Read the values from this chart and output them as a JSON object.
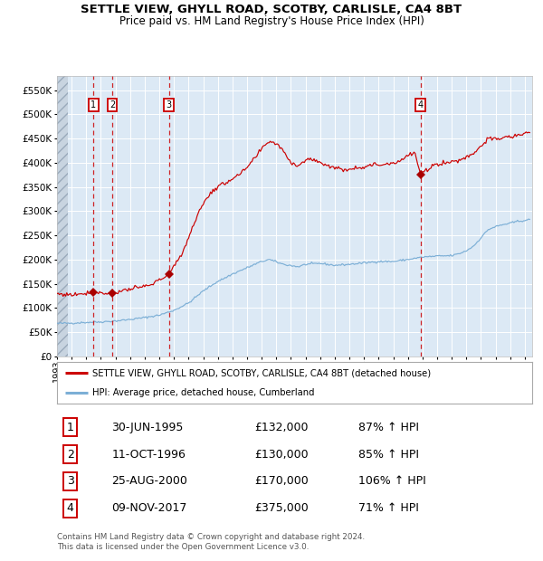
{
  "title": "SETTLE VIEW, GHYLL ROAD, SCOTBY, CARLISLE, CA4 8BT",
  "subtitle": "Price paid vs. HM Land Registry's House Price Index (HPI)",
  "legend_property": "SETTLE VIEW, GHYLL ROAD, SCOTBY, CARLISLE, CA4 8BT (detached house)",
  "legend_hpi": "HPI: Average price, detached house, Cumberland",
  "footer_line1": "Contains HM Land Registry data © Crown copyright and database right 2024.",
  "footer_line2": "This data is licensed under the Open Government Licence v3.0.",
  "sales": [
    {
      "num": 1,
      "date": "30-JUN-1995",
      "price": 132000,
      "hpi_pct": "87% ↑ HPI",
      "x_year": 1995.5
    },
    {
      "num": 2,
      "date": "11-OCT-1996",
      "price": 130000,
      "hpi_pct": "85% ↑ HPI",
      "x_year": 1996.79
    },
    {
      "num": 3,
      "date": "25-AUG-2000",
      "price": 170000,
      "hpi_pct": "106% ↑ HPI",
      "x_year": 2000.65
    },
    {
      "num": 4,
      "date": "09-NOV-2017",
      "price": 375000,
      "hpi_pct": "71% ↑ HPI",
      "x_year": 2017.86
    }
  ],
  "property_color": "#cc0000",
  "hpi_color": "#7cafd6",
  "sale_marker_color": "#aa0000",
  "dashed_line_color": "#cc0000",
  "box_color": "#cc0000",
  "background_color": "#dce9f5",
  "ylim": [
    0,
    580000
  ],
  "yticks": [
    0,
    50000,
    100000,
    150000,
    200000,
    250000,
    300000,
    350000,
    400000,
    450000,
    500000,
    550000
  ],
  "xlim_start": 1993.0,
  "xlim_end": 2025.5,
  "grid_color": "#ffffff",
  "title_fontsize": 9.5,
  "subtitle_fontsize": 8.5,
  "tick_fontsize": 7.5,
  "hpi_anchors": [
    [
      1993.0,
      68000
    ],
    [
      1994.0,
      68500
    ],
    [
      1995.0,
      70000
    ],
    [
      1996.0,
      71000
    ],
    [
      1997.0,
      73000
    ],
    [
      1998.0,
      76000
    ],
    [
      1999.0,
      80000
    ],
    [
      2000.0,
      85000
    ],
    [
      2001.0,
      95000
    ],
    [
      2002.0,
      110000
    ],
    [
      2003.0,
      135000
    ],
    [
      2004.0,
      155000
    ],
    [
      2004.5,
      162000
    ],
    [
      2005.0,
      170000
    ],
    [
      2006.0,
      183000
    ],
    [
      2007.0,
      196000
    ],
    [
      2007.5,
      200000
    ],
    [
      2008.5,
      190000
    ],
    [
      2009.5,
      185000
    ],
    [
      2010.0,
      190000
    ],
    [
      2011.0,
      192000
    ],
    [
      2012.0,
      188000
    ],
    [
      2013.0,
      190000
    ],
    [
      2014.0,
      193000
    ],
    [
      2015.0,
      196000
    ],
    [
      2016.0,
      196000
    ],
    [
      2017.0,
      200000
    ],
    [
      2018.0,
      205000
    ],
    [
      2019.0,
      207000
    ],
    [
      2020.0,
      208000
    ],
    [
      2020.5,
      212000
    ],
    [
      2021.0,
      218000
    ],
    [
      2021.5,
      228000
    ],
    [
      2022.0,
      245000
    ],
    [
      2022.5,
      262000
    ],
    [
      2023.0,
      268000
    ],
    [
      2023.5,
      272000
    ],
    [
      2024.0,
      275000
    ],
    [
      2024.5,
      279000
    ],
    [
      2025.3,
      282000
    ]
  ],
  "prop_anchors": [
    [
      1993.0,
      129000
    ],
    [
      1994.0,
      127000
    ],
    [
      1995.0,
      131000
    ],
    [
      1995.5,
      132000
    ],
    [
      1996.0,
      131000
    ],
    [
      1996.79,
      130000
    ],
    [
      1997.5,
      136000
    ],
    [
      1998.5,
      141000
    ],
    [
      1999.5,
      148000
    ],
    [
      2000.0,
      158000
    ],
    [
      2000.65,
      170000
    ],
    [
      2001.0,
      185000
    ],
    [
      2001.5,
      210000
    ],
    [
      2002.0,
      245000
    ],
    [
      2002.5,
      285000
    ],
    [
      2003.0,
      315000
    ],
    [
      2003.5,
      338000
    ],
    [
      2004.0,
      350000
    ],
    [
      2004.5,
      358000
    ],
    [
      2005.0,
      368000
    ],
    [
      2005.5,
      375000
    ],
    [
      2006.0,
      390000
    ],
    [
      2006.5,
      408000
    ],
    [
      2007.0,
      428000
    ],
    [
      2007.5,
      445000
    ],
    [
      2008.0,
      440000
    ],
    [
      2008.5,
      425000
    ],
    [
      2009.0,
      400000
    ],
    [
      2009.5,
      395000
    ],
    [
      2010.0,
      405000
    ],
    [
      2010.5,
      408000
    ],
    [
      2011.0,
      400000
    ],
    [
      2011.5,
      395000
    ],
    [
      2012.0,
      390000
    ],
    [
      2012.5,
      385000
    ],
    [
      2013.0,
      388000
    ],
    [
      2013.5,
      390000
    ],
    [
      2014.0,
      392000
    ],
    [
      2014.5,
      395000
    ],
    [
      2015.0,
      396000
    ],
    [
      2015.5,
      398000
    ],
    [
      2016.0,
      400000
    ],
    [
      2016.5,
      405000
    ],
    [
      2017.0,
      415000
    ],
    [
      2017.5,
      420000
    ],
    [
      2017.86,
      375000
    ],
    [
      2018.0,
      378000
    ],
    [
      2018.5,
      390000
    ],
    [
      2019.0,
      398000
    ],
    [
      2019.5,
      400000
    ],
    [
      2020.0,
      402000
    ],
    [
      2020.5,
      405000
    ],
    [
      2021.0,
      412000
    ],
    [
      2021.5,
      420000
    ],
    [
      2022.0,
      435000
    ],
    [
      2022.5,
      450000
    ],
    [
      2023.0,
      448000
    ],
    [
      2023.5,
      452000
    ],
    [
      2024.0,
      453000
    ],
    [
      2024.5,
      457000
    ],
    [
      2025.0,
      460000
    ],
    [
      2025.3,
      465000
    ]
  ]
}
